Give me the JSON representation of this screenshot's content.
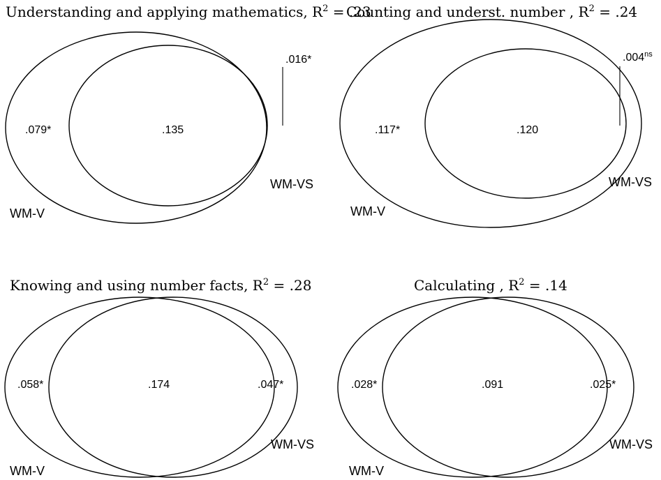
{
  "panels": [
    {
      "id": "understanding",
      "title": "Understanding and applying mathematics, R",
      "title_sup": "2",
      "title_tail": " = .23",
      "unique_v": ".079*",
      "shared": ".135",
      "unique_vs": ".016*",
      "unique_vs_sup": "",
      "label_v": "WM-V",
      "label_vs": "WM-VS"
    },
    {
      "id": "counting",
      "title": "Counting and underst. number , R",
      "title_sup": "2",
      "title_tail": " = .24",
      "unique_v": ".117*",
      "shared": ".120",
      "unique_vs": ".004",
      "unique_vs_sup": "ns",
      "label_v": "WM-V",
      "label_vs": "WM-VS"
    },
    {
      "id": "knowing",
      "title": "Knowing and using number facts, R",
      "title_sup": "2",
      "title_tail": " = .28",
      "unique_v": ".058*",
      "shared": ".174",
      "unique_vs": ".047*",
      "unique_vs_sup": "",
      "label_v": "WM-V",
      "label_vs": "WM-VS"
    },
    {
      "id": "calculating",
      "title": "Calculating , R",
      "title_sup": "2",
      "title_tail": " = .14",
      "unique_v": ".028*",
      "shared": ".091",
      "unique_vs": ".025*",
      "unique_vs_sup": "",
      "label_v": "WM-V",
      "label_vs": "WM-VS"
    }
  ]
}
